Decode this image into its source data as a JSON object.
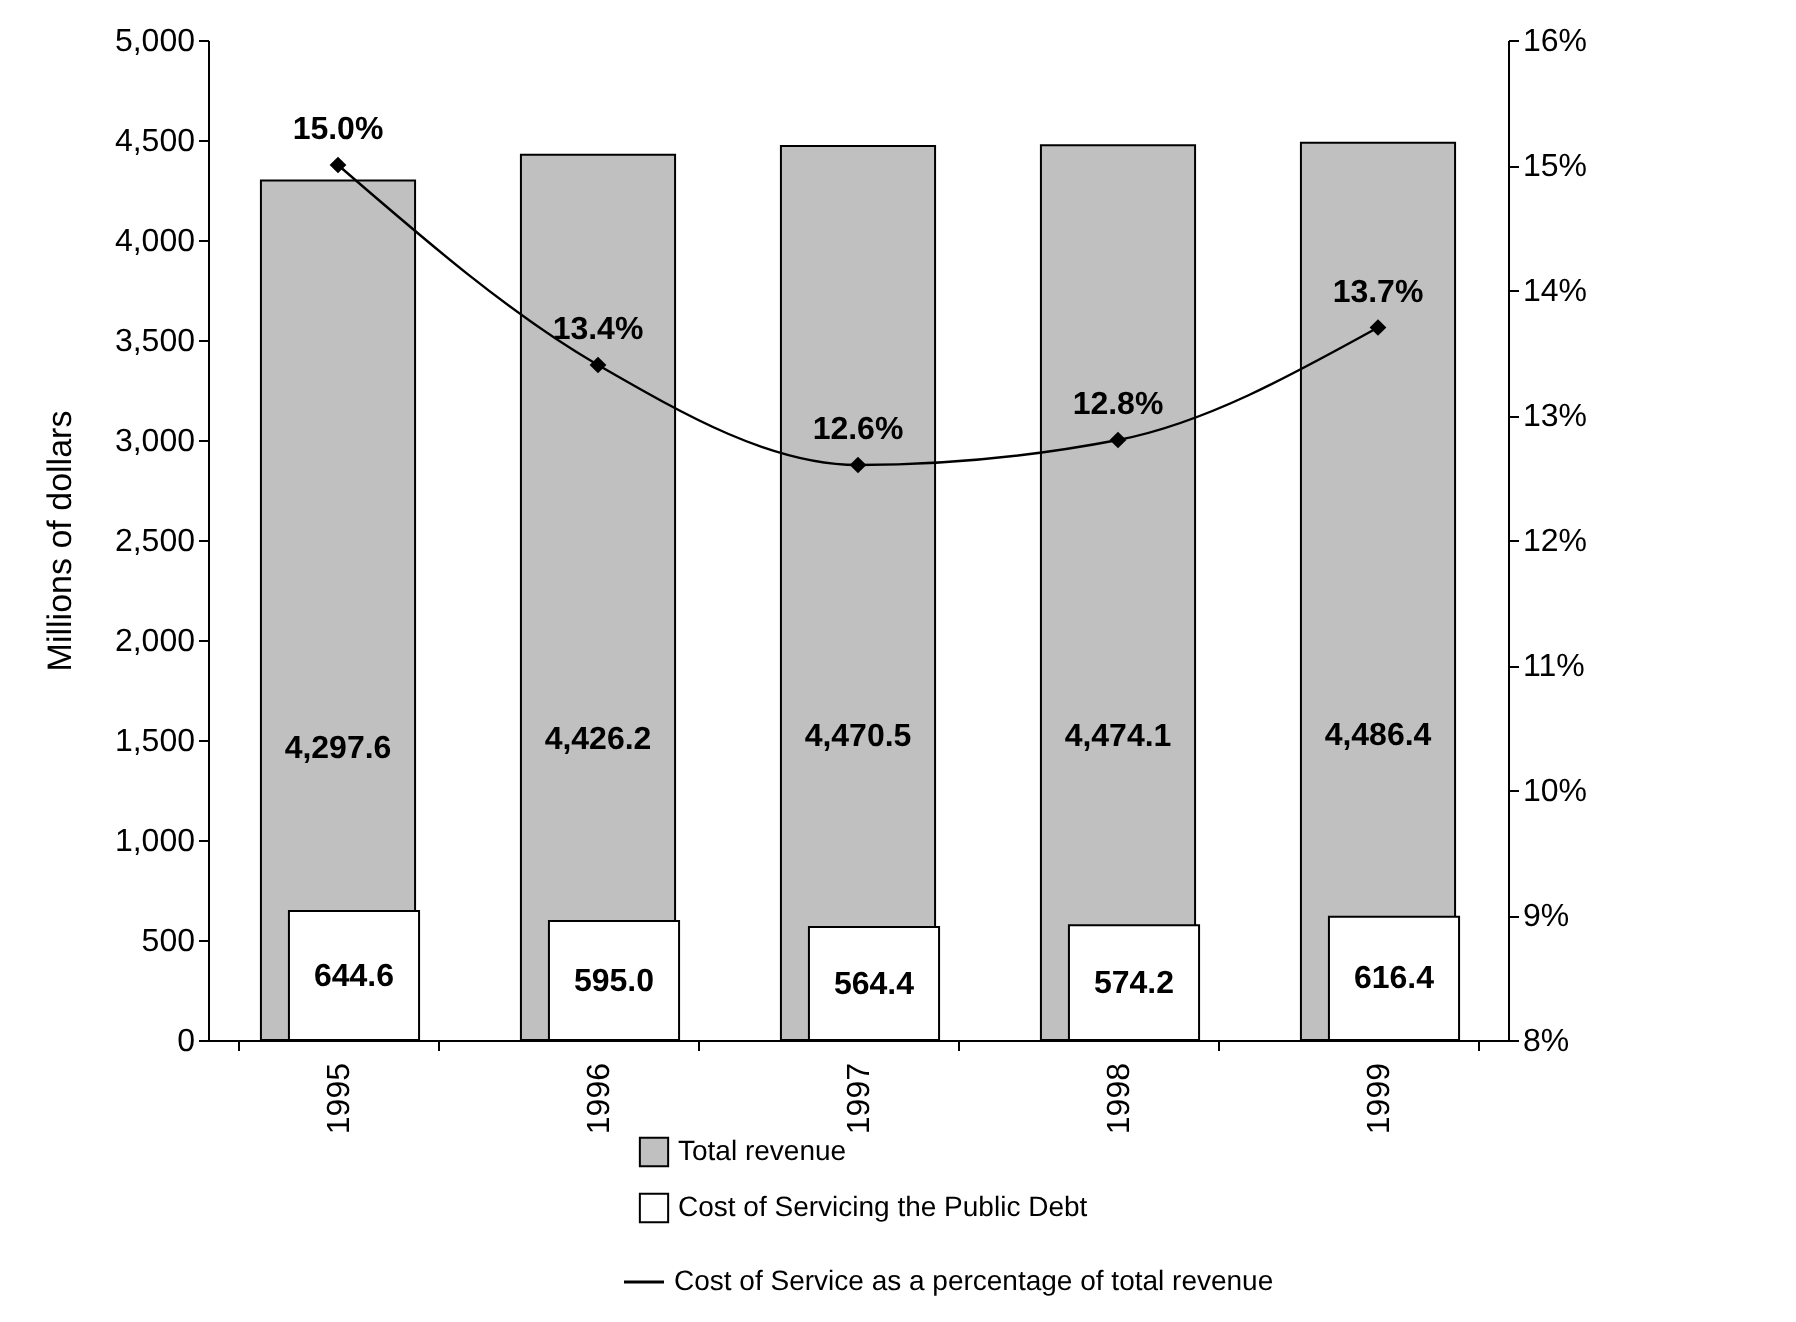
{
  "chart_data": {
    "type": "bar",
    "categories": [
      "1995",
      "1996",
      "1997",
      "1998",
      "1999"
    ],
    "series": [
      {
        "name": "Total revenue",
        "color": "#c0c0c0",
        "values": [
          4297.6,
          4426.2,
          4470.5,
          4474.1,
          4486.4
        ],
        "value_labels": [
          "4,297.6",
          "4,426.2",
          "4,470.5",
          "4,474.1",
          "4,486.4"
        ]
      },
      {
        "name": "Cost of Servicing the Public Debt",
        "color": "#ffffff",
        "values": [
          644.6,
          595.0,
          564.4,
          574.2,
          616.4
        ],
        "value_labels": [
          "644.6",
          "595.0",
          "564.4",
          "574.2",
          "616.4"
        ]
      },
      {
        "name": "Cost of Service as a percentage of total revenue",
        "type": "line",
        "axis": "y2",
        "color": "#000000",
        "values": [
          15.0,
          13.4,
          12.6,
          12.8,
          13.7
        ],
        "value_labels": [
          "15.0%",
          "13.4%",
          "12.6%",
          "12.8%",
          "13.7%"
        ]
      }
    ],
    "ylabel": "Millions of dollars",
    "ylim": [
      0,
      5000
    ],
    "yticks": [
      0,
      {
        "value": 500,
        "label": "500"
      },
      {
        "value": 1000,
        "label": "1,000"
      },
      {
        "value": 1500,
        "label": "1,500"
      },
      {
        "value": 2000,
        "label": "2,000"
      },
      {
        "value": 2500,
        "label": "2,500"
      },
      {
        "value": 3000,
        "label": "3,000"
      },
      {
        "value": 3500,
        "label": "3,500"
      },
      {
        "value": 4000,
        "label": "4,000"
      },
      {
        "value": 4500,
        "label": "4,500"
      },
      {
        "value": 5000,
        "label": "5,000"
      }
    ],
    "y2lim": [
      8,
      16
    ],
    "y2ticks": [
      {
        "value": 8,
        "label": "8%"
      },
      {
        "value": 9,
        "label": "9%"
      },
      {
        "value": 10,
        "label": "10%"
      },
      {
        "value": 11,
        "label": "11%"
      },
      {
        "value": 12,
        "label": "12%"
      },
      {
        "value": 13,
        "label": "13%"
      },
      {
        "value": 14,
        "label": "14%"
      },
      {
        "value": 15,
        "label": "15%"
      },
      {
        "value": 16,
        "label": "16%"
      }
    ],
    "marker": "diamond",
    "legend": "bottom",
    "grid": false
  }
}
